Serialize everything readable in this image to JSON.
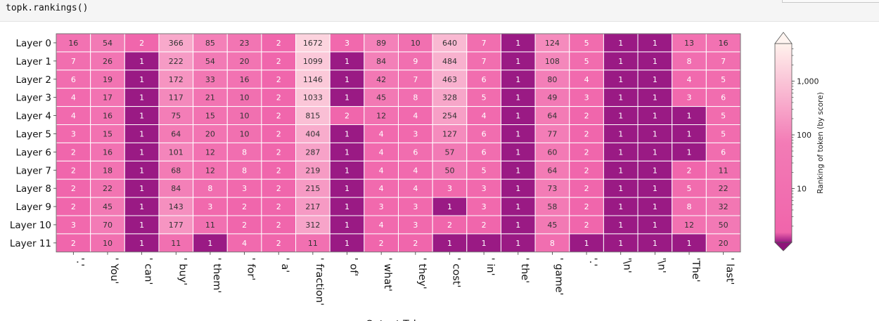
{
  "code_cell": {
    "text": "topk.rankings()"
  },
  "chart_data": {
    "type": "heatmap",
    "title": "",
    "ylabel": "",
    "xlabel": "Output Token",
    "colorbar_label": "Ranking of token (by score)",
    "colorbar_scale": "log",
    "colorbar_ticks": [
      "1,000",
      "100",
      "10"
    ],
    "colorbar_tick_values": [
      1000,
      100,
      10
    ],
    "colorbar_range": [
      1,
      5000
    ],
    "colormap": {
      "low": "#9a1a84",
      "mid": "#f062aa",
      "high": "#fff2ec"
    },
    "rows": [
      "Layer 0",
      "Layer 1",
      "Layer 2",
      "Layer 3",
      "Layer 4",
      "Layer 5",
      "Layer 6",
      "Layer 7",
      "Layer 8",
      "Layer 9",
      "Layer 10",
      "Layer 11"
    ],
    "columns": [
      "'.'",
      "' You'",
      "' can'",
      "' buy'",
      "' them'",
      "' for'",
      "' a'",
      "' fraction'",
      "' of'",
      "' what'",
      "' they'",
      "' cost'",
      "' in'",
      "' the'",
      "' game'",
      "'.'",
      "'\\n'",
      "'\\n'",
      "'The'",
      "' last'"
    ],
    "values": [
      [
        16,
        54,
        2,
        366,
        85,
        23,
        2,
        1672,
        3,
        89,
        10,
        640,
        7,
        1,
        124,
        5,
        1,
        1,
        13,
        16
      ],
      [
        7,
        26,
        1,
        222,
        54,
        20,
        2,
        1099,
        1,
        84,
        9,
        484,
        7,
        1,
        108,
        5,
        1,
        1,
        8,
        7
      ],
      [
        6,
        19,
        1,
        172,
        33,
        16,
        2,
        1146,
        1,
        42,
        7,
        463,
        6,
        1,
        80,
        4,
        1,
        1,
        4,
        5
      ],
      [
        4,
        17,
        1,
        117,
        21,
        10,
        2,
        1033,
        1,
        45,
        8,
        328,
        5,
        1,
        49,
        3,
        1,
        1,
        3,
        6
      ],
      [
        4,
        16,
        1,
        75,
        15,
        10,
        2,
        815,
        2,
        12,
        4,
        254,
        4,
        1,
        64,
        2,
        1,
        1,
        1,
        5
      ],
      [
        3,
        15,
        1,
        64,
        20,
        10,
        2,
        404,
        1,
        4,
        3,
        127,
        6,
        1,
        77,
        2,
        1,
        1,
        1,
        5
      ],
      [
        2,
        16,
        1,
        101,
        12,
        8,
        2,
        287,
        1,
        4,
        6,
        57,
        6,
        1,
        60,
        2,
        1,
        1,
        1,
        6
      ],
      [
        2,
        18,
        1,
        68,
        12,
        8,
        2,
        219,
        1,
        4,
        4,
        50,
        5,
        1,
        64,
        2,
        1,
        1,
        2,
        11
      ],
      [
        2,
        22,
        1,
        84,
        8,
        3,
        2,
        215,
        1,
        4,
        4,
        3,
        3,
        1,
        73,
        2,
        1,
        1,
        5,
        22
      ],
      [
        2,
        45,
        1,
        143,
        3,
        2,
        2,
        217,
        1,
        3,
        3,
        1,
        3,
        1,
        58,
        2,
        1,
        1,
        8,
        32
      ],
      [
        3,
        70,
        1,
        177,
        11,
        2,
        2,
        312,
        1,
        4,
        3,
        2,
        2,
        1,
        45,
        2,
        1,
        1,
        12,
        50
      ],
      [
        2,
        10,
        1,
        11,
        1,
        4,
        2,
        11,
        1,
        2,
        2,
        1,
        1,
        1,
        8,
        1,
        1,
        1,
        1,
        20
      ]
    ]
  }
}
